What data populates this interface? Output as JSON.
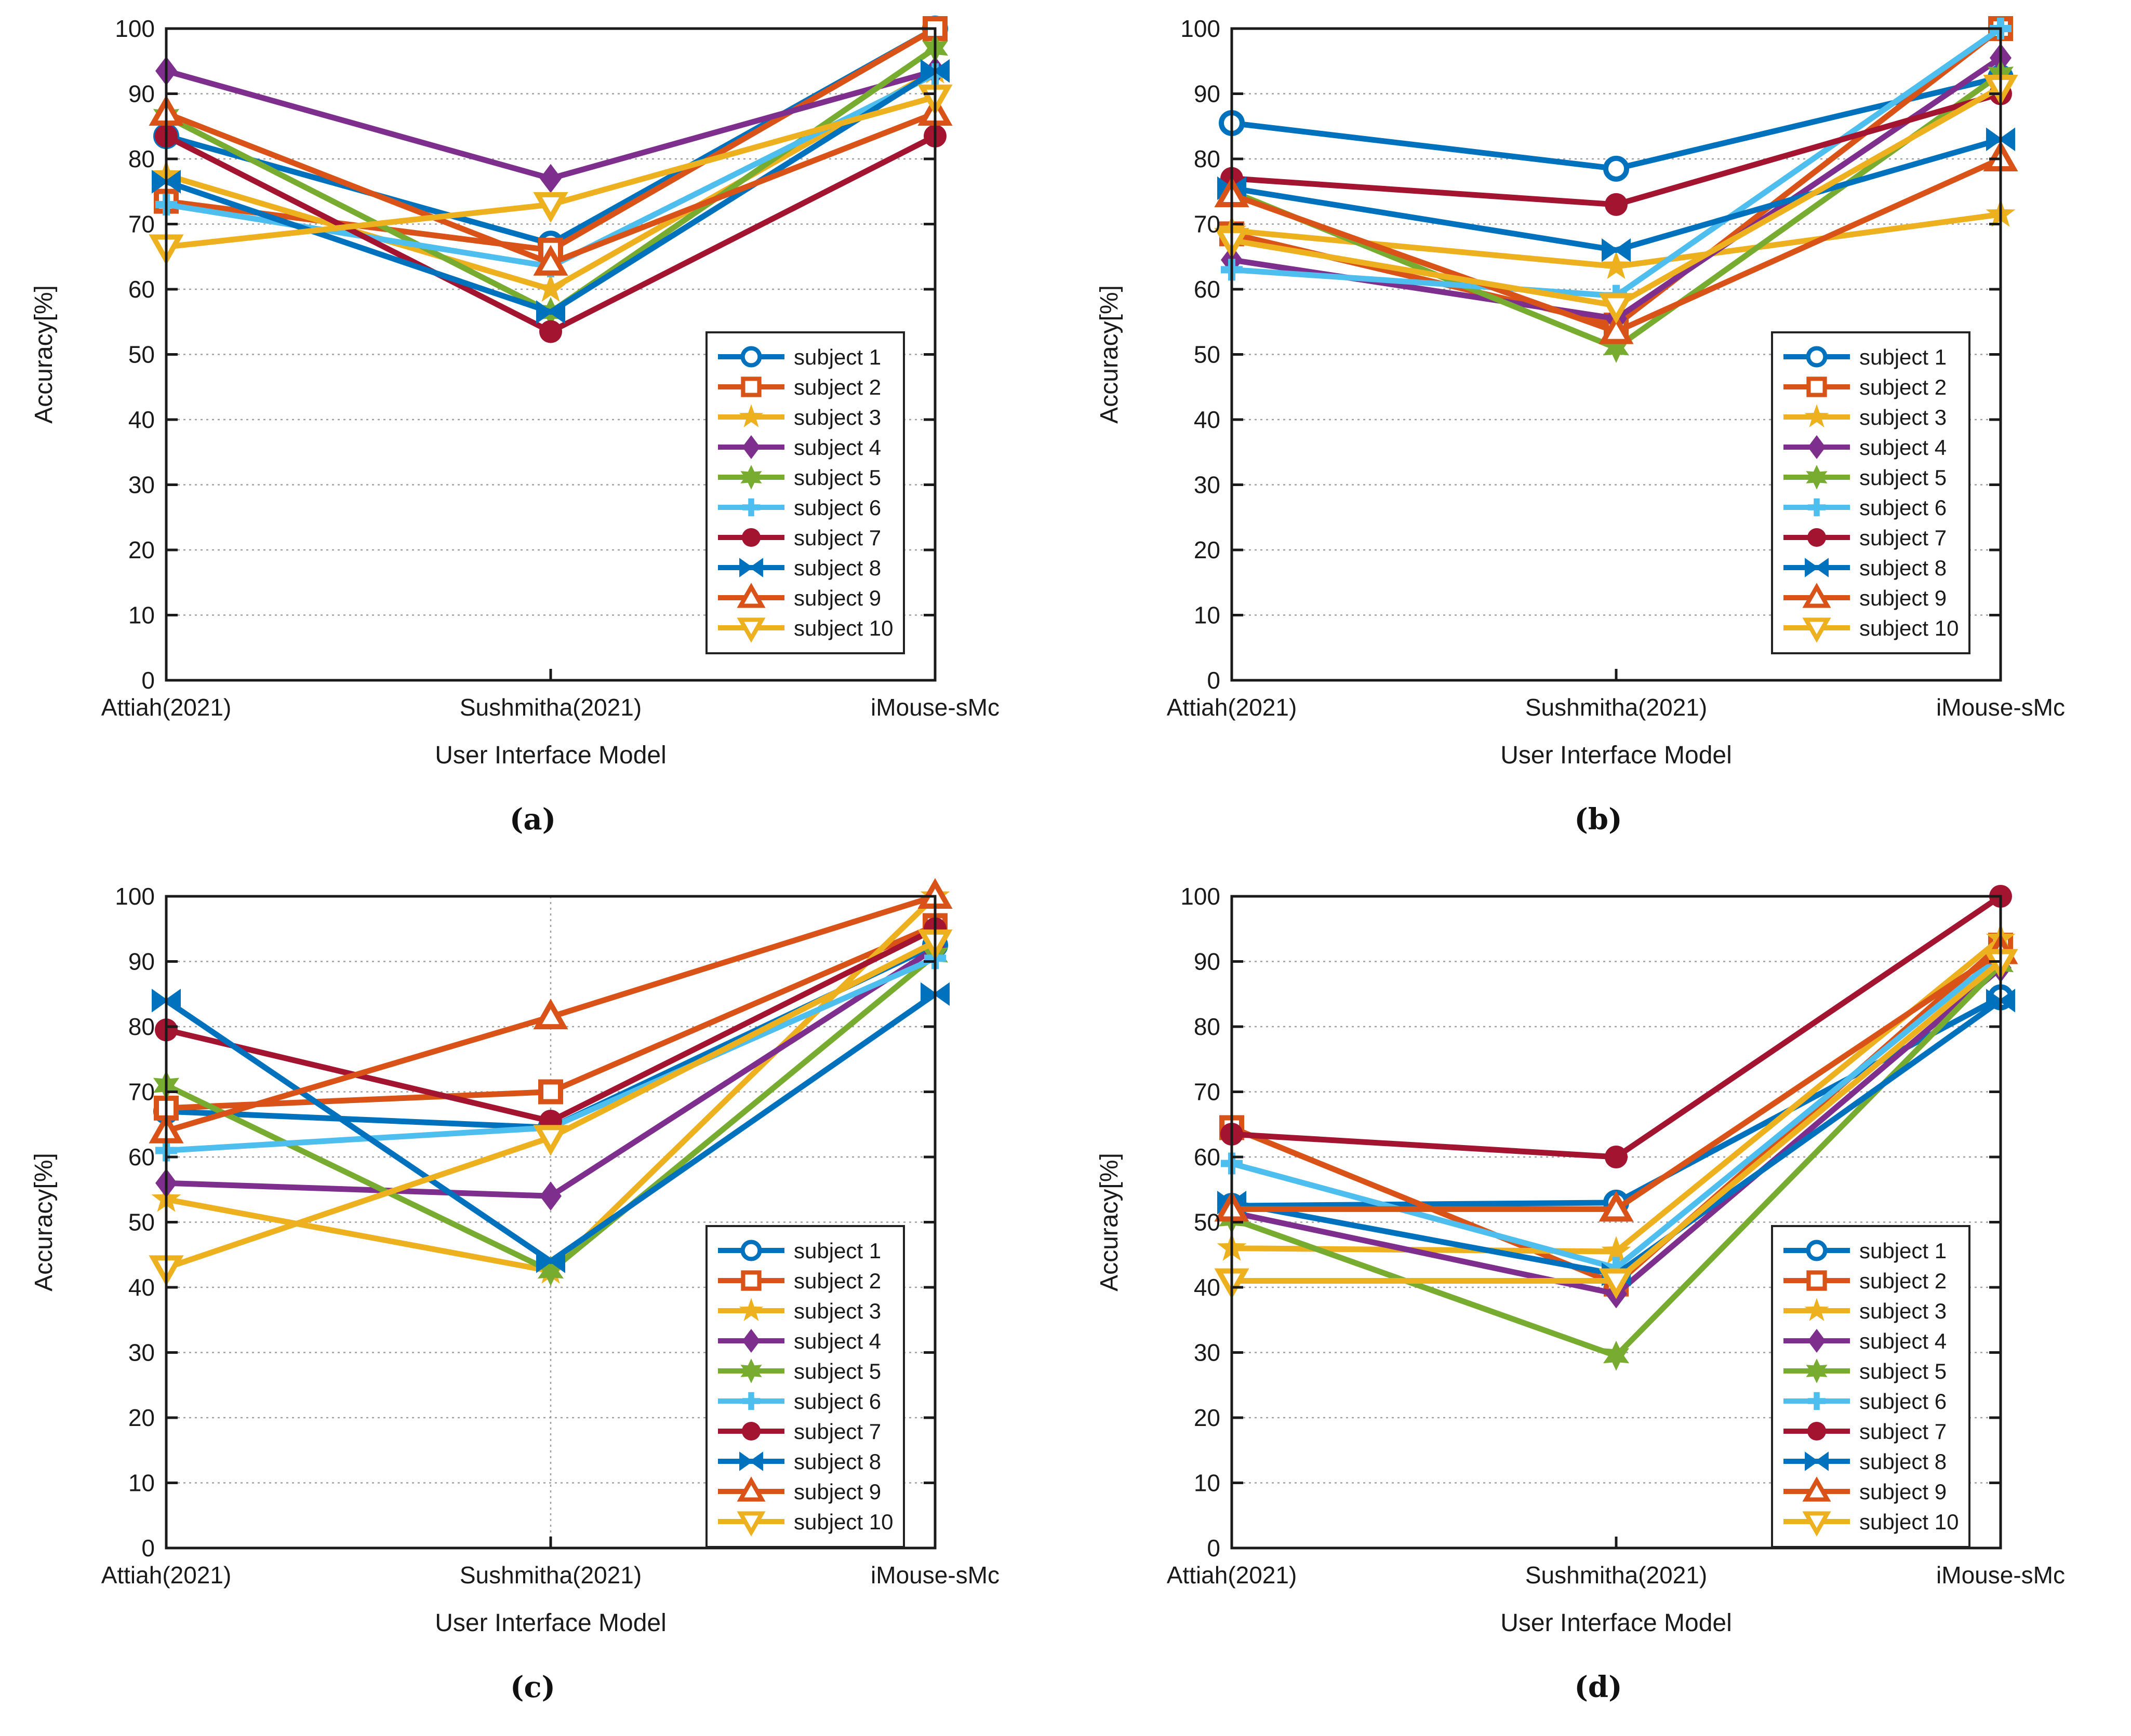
{
  "figure": {
    "background": "#ffffff",
    "axis_color": "#1a1a1a",
    "grid_color": "#888888",
    "xlabel": "User Interface Model",
    "ylabel": "Accuracy[%]",
    "categories": [
      "Attiah(2021)",
      "Sushmitha(2021)",
      "iMouse-sMc"
    ],
    "ytick_labels": [
      "0",
      "10",
      "20",
      "30",
      "40",
      "50",
      "60",
      "70",
      "80",
      "90",
      "100"
    ]
  },
  "legend": {
    "labels": [
      "subject 1",
      "subject 2",
      "subject 3",
      "subject 4",
      "subject 5",
      "subject 6",
      "subject 7",
      "subject 8",
      "subject 9",
      "subject 10"
    ]
  },
  "series_style": [
    {
      "name": "subject 1",
      "color": "#0072BD",
      "marker": "circle-open"
    },
    {
      "name": "subject 2",
      "color": "#D95319",
      "marker": "square-open"
    },
    {
      "name": "subject 3",
      "color": "#EDB120",
      "marker": "star5"
    },
    {
      "name": "subject 4",
      "color": "#7E2F8E",
      "marker": "diamond"
    },
    {
      "name": "subject 5",
      "color": "#77AC30",
      "marker": "star6"
    },
    {
      "name": "subject 6",
      "color": "#4DBEEE",
      "marker": "plus"
    },
    {
      "name": "subject 7",
      "color": "#A2142F",
      "marker": "circle-filled"
    },
    {
      "name": "subject 8",
      "color": "#0072BD",
      "marker": "bowtie"
    },
    {
      "name": "subject 9",
      "color": "#D95319",
      "marker": "triangle-up"
    },
    {
      "name": "subject 10",
      "color": "#EDB120",
      "marker": "triangle-down"
    }
  ],
  "chart_data": [
    {
      "type": "line",
      "caption": "(a)",
      "xlabel": "User Interface Model",
      "ylabel": "Accuracy[%]",
      "categories": [
        "Attiah(2021)",
        "Sushmitha(2021)",
        "iMouse-sMc"
      ],
      "ylim": [
        0,
        100
      ],
      "ytick_step": 10,
      "grid": "y-dashed",
      "xgrid": false,
      "legend_position": {
        "x": 1360,
        "y": 640
      },
      "series": [
        {
          "name": "subject 1",
          "values": [
            83.5,
            67,
            100
          ]
        },
        {
          "name": "subject 2",
          "values": [
            73.5,
            66,
            100
          ]
        },
        {
          "name": "subject 3",
          "values": [
            77.5,
            60,
            93.5
          ]
        },
        {
          "name": "subject 4",
          "values": [
            93.5,
            77,
            93.5
          ]
        },
        {
          "name": "subject 5",
          "values": [
            86.5,
            56.5,
            97
          ]
        },
        {
          "name": "subject 6",
          "values": [
            73,
            63.5,
            93
          ]
        },
        {
          "name": "subject 7",
          "values": [
            83.5,
            53.5,
            83.5
          ]
        },
        {
          "name": "subject 8",
          "values": [
            76.5,
            56.5,
            93.5
          ]
        },
        {
          "name": "subject 9",
          "values": [
            87,
            64,
            87
          ]
        },
        {
          "name": "subject 10",
          "values": [
            66.5,
            73,
            89.5
          ]
        }
      ]
    },
    {
      "type": "line",
      "caption": "(b)",
      "xlabel": "User Interface Model",
      "ylabel": "Accuracy[%]",
      "categories": [
        "Attiah(2021)",
        "Sushmitha(2021)",
        "iMouse-sMc"
      ],
      "ylim": [
        0,
        100
      ],
      "ytick_step": 10,
      "grid": "y-dashed",
      "xgrid": false,
      "legend_position": {
        "x": 1360,
        "y": 640
      },
      "series": [
        {
          "name": "subject 1",
          "values": [
            85.5,
            78.5,
            92.5
          ]
        },
        {
          "name": "subject 2",
          "values": [
            68.5,
            54.5,
            100
          ]
        },
        {
          "name": "subject 3",
          "values": [
            69,
            63.5,
            71.5
          ]
        },
        {
          "name": "subject 4",
          "values": [
            64.5,
            55.5,
            95.5
          ]
        },
        {
          "name": "subject 5",
          "values": [
            75,
            51,
            93
          ]
        },
        {
          "name": "subject 6",
          "values": [
            63,
            59,
            100
          ]
        },
        {
          "name": "subject 7",
          "values": [
            77,
            73,
            90
          ]
        },
        {
          "name": "subject 8",
          "values": [
            75.5,
            66,
            83
          ]
        },
        {
          "name": "subject 9",
          "values": [
            74.5,
            53.5,
            80
          ]
        },
        {
          "name": "subject 10",
          "values": [
            67.5,
            57.5,
            91
          ]
        }
      ]
    },
    {
      "type": "line",
      "caption": "(c)",
      "xlabel": "User Interface Model",
      "ylabel": "Accuracy[%]",
      "categories": [
        "Attiah(2021)",
        "Sushmitha(2021)",
        "iMouse-sMc"
      ],
      "ylim": [
        0,
        100
      ],
      "ytick_step": 10,
      "grid": "y-dashed",
      "xgrid": true,
      "legend_position": {
        "x": 1360,
        "y": 690
      },
      "series": [
        {
          "name": "subject 1",
          "values": [
            67,
            64.5,
            92.5
          ]
        },
        {
          "name": "subject 2",
          "values": [
            67.5,
            70,
            95.5
          ]
        },
        {
          "name": "subject 3",
          "values": [
            53.5,
            42.5,
            100
          ]
        },
        {
          "name": "subject 4",
          "values": [
            56,
            54,
            92
          ]
        },
        {
          "name": "subject 5",
          "values": [
            71,
            42.5,
            91
          ]
        },
        {
          "name": "subject 6",
          "values": [
            61,
            64.5,
            90.5
          ]
        },
        {
          "name": "subject 7",
          "values": [
            79.5,
            65.5,
            95
          ]
        },
        {
          "name": "subject 8",
          "values": [
            84,
            44,
            85
          ]
        },
        {
          "name": "subject 9",
          "values": [
            64,
            81.5,
            100
          ]
        },
        {
          "name": "subject 10",
          "values": [
            43,
            63,
            93
          ]
        }
      ]
    },
    {
      "type": "line",
      "caption": "(d)",
      "xlabel": "User Interface Model",
      "ylabel": "Accuracy[%]",
      "categories": [
        "Attiah(2021)",
        "Sushmitha(2021)",
        "iMouse-sMc"
      ],
      "ylim": [
        0,
        100
      ],
      "ytick_step": 10,
      "grid": "y-dashed",
      "xgrid": false,
      "legend_position": {
        "x": 1360,
        "y": 690
      },
      "series": [
        {
          "name": "subject 1",
          "values": [
            52.5,
            53,
            84.5
          ]
        },
        {
          "name": "subject 2",
          "values": [
            64.5,
            40.5,
            92.5
          ]
        },
        {
          "name": "subject 3",
          "values": [
            46,
            45.5,
            93.5
          ]
        },
        {
          "name": "subject 4",
          "values": [
            51.5,
            39,
            89
          ]
        },
        {
          "name": "subject 5",
          "values": [
            50.5,
            29.5,
            89.5
          ]
        },
        {
          "name": "subject 6",
          "values": [
            59,
            43,
            91
          ]
        },
        {
          "name": "subject 7",
          "values": [
            63.5,
            60,
            100
          ]
        },
        {
          "name": "subject 8",
          "values": [
            53,
            42,
            84
          ]
        },
        {
          "name": "subject 9",
          "values": [
            52,
            52,
            91.5
          ]
        },
        {
          "name": "subject 10",
          "values": [
            41,
            41,
            90
          ]
        }
      ]
    }
  ]
}
